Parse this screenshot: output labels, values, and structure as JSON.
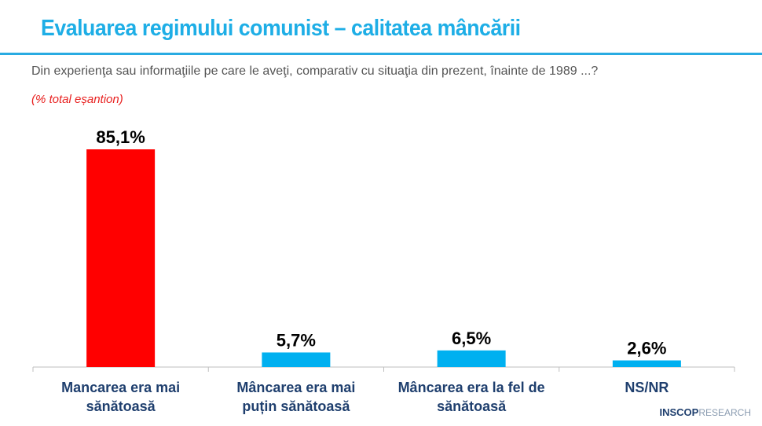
{
  "header": {
    "title": "Evaluarea regimului comunist – calitatea mâncării",
    "subtitle": "Din experienţa sau informaţiile pe care le aveţi, comparativ cu situaţia din prezent, înainte de 1989 ...?",
    "note": "(% total eșantion)"
  },
  "chart_data": {
    "type": "bar",
    "categories": [
      [
        "Mancarea era mai",
        "sănătoasă"
      ],
      [
        "Mâncarea era mai",
        "puțin sănătoasă"
      ],
      [
        "Mâncarea era la fel de",
        "sănătoasă"
      ],
      [
        "NS/NR"
      ]
    ],
    "values": [
      85.1,
      5.7,
      6.5,
      2.6
    ],
    "data_labels": [
      "85,1%",
      "5,7%",
      "6,5%",
      "2,6%"
    ],
    "colors": [
      "#ff0000",
      "#00b0f0",
      "#00b0f0",
      "#00b0f0"
    ],
    "ylim": [
      0,
      100
    ],
    "grid": false
  },
  "logo": {
    "bold": "INSCOP",
    "light": "RESEARCH"
  }
}
